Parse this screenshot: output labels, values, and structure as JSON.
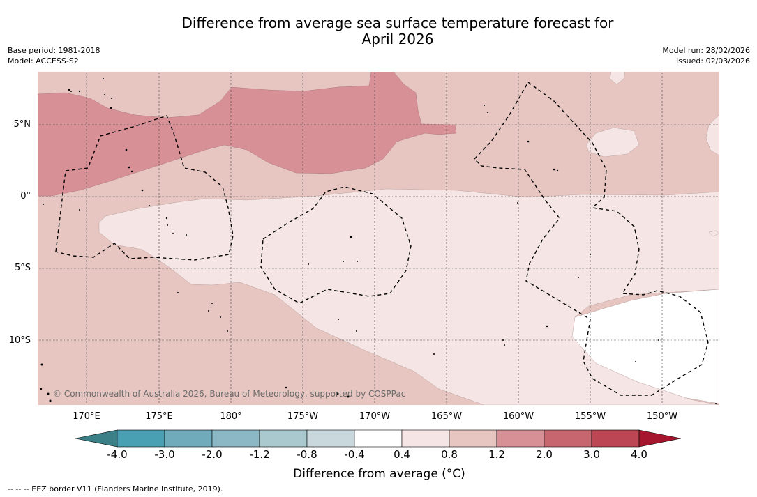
{
  "header": {
    "title_line1": "Difference from average sea surface temperature forecast for",
    "title_line2": "April 2026"
  },
  "meta": {
    "base_period": "Base period: 1981-2018",
    "model": "Model: ACCESS-S2",
    "model_run": "Model run: 28/02/2026",
    "issued": "Issued: 02/03/2026"
  },
  "axes": {
    "lat_labels": [
      "5°N",
      "0°",
      "5°S",
      "10°S"
    ],
    "lon_labels": [
      "170°E",
      "175°E",
      "180°",
      "175°W",
      "170°W",
      "165°W",
      "160°W",
      "155°W",
      "150°W"
    ]
  },
  "map": {
    "copyright": "© Commonwealth of Australia 2026, Bureau of Meteorology, supported by COSPPac"
  },
  "colorbar": {
    "ticks": [
      "-4.0",
      "-3.0",
      "-2.0",
      "-1.2",
      "-0.8",
      "-0.4",
      "0.4",
      "0.8",
      "1.2",
      "2.0",
      "3.0",
      "4.0"
    ],
    "colors": [
      "#3b7f87",
      "#4aa0b3",
      "#6fabbb",
      "#8cb7c4",
      "#aac9cf",
      "#c9d8dd",
      "#ffffff",
      "#f5e6e5",
      "#e7c6c1",
      "#d69096",
      "#c8666f",
      "#bd4655",
      "#a6162f"
    ],
    "label": "Difference from average (°C)"
  },
  "footer": {
    "legend_text": "--  --  -- EEZ border V11 (Flanders Marine Institute, 2019)."
  }
}
